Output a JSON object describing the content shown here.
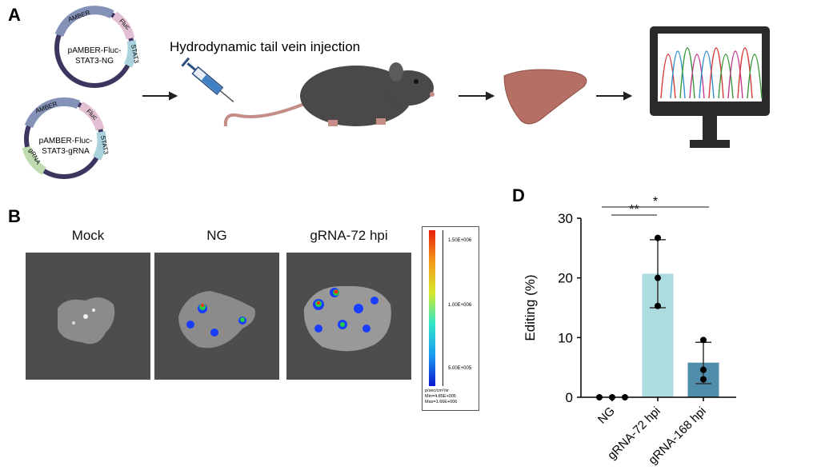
{
  "panels": {
    "a": "A",
    "b": "B",
    "d": "D"
  },
  "panel_a": {
    "plasmid1": {
      "line1": "pAMBER-Fluc-",
      "line2": "STAT3-NG",
      "segments": [
        "AMBER",
        "Fluc",
        "STAT3"
      ]
    },
    "plasmid2": {
      "line1": "pAMBER-Fluc-",
      "line2": "STAT3-gRNA",
      "segments": [
        "AMBER",
        "Fluc",
        "STAT3",
        "gRNA"
      ]
    },
    "injection_label": "Hydrodynamic tail vein injection",
    "icons": [
      "syringe-icon",
      "mouse-icon",
      "liver-icon",
      "monitor-chromatogram-icon"
    ]
  },
  "panel_b": {
    "images": [
      {
        "title": "Mock"
      },
      {
        "title": "NG"
      },
      {
        "title": "gRNA-72 hpi"
      }
    ],
    "colorbar": {
      "ticks": [
        "1.50E+006",
        "1.00E+006",
        "5.00E+005"
      ],
      "unit": "p/sec/cm²/sr",
      "min": "Min=4.85E+005",
      "max": "Max=1.66E+006"
    }
  },
  "colors": {
    "bar72": "#acdce0",
    "bar168": "#4f8daa",
    "plasmid_backbone": "#3d3560",
    "amber": "#8392b6",
    "fluc": "#e3bfd3",
    "stat3": "#a9d2dc",
    "grna": "#bfdcb0"
  },
  "chart_data": {
    "type": "bar",
    "title": "",
    "xlabel": "",
    "ylabel": "Editing (%)",
    "ylim": [
      0,
      30
    ],
    "yticks": [
      "0",
      "10",
      "20",
      "30"
    ],
    "categories": [
      "NG",
      "gRNA-72 hpi",
      "gRNA-168 hpi"
    ],
    "values": [
      0,
      20.7,
      5.8
    ],
    "error": [
      [
        0,
        0
      ],
      [
        15.0,
        26.4
      ],
      [
        2.3,
        9.2
      ]
    ],
    "points": [
      [
        0,
        0,
        0
      ],
      [
        26.7,
        20.0,
        15.3
      ],
      [
        9.6,
        4.6,
        3.0
      ]
    ],
    "significance": [
      {
        "from": "NG",
        "to": "gRNA-72 hpi",
        "label": "**"
      },
      {
        "from": "NG",
        "to": "gRNA-168 hpi",
        "label": "*"
      }
    ]
  }
}
